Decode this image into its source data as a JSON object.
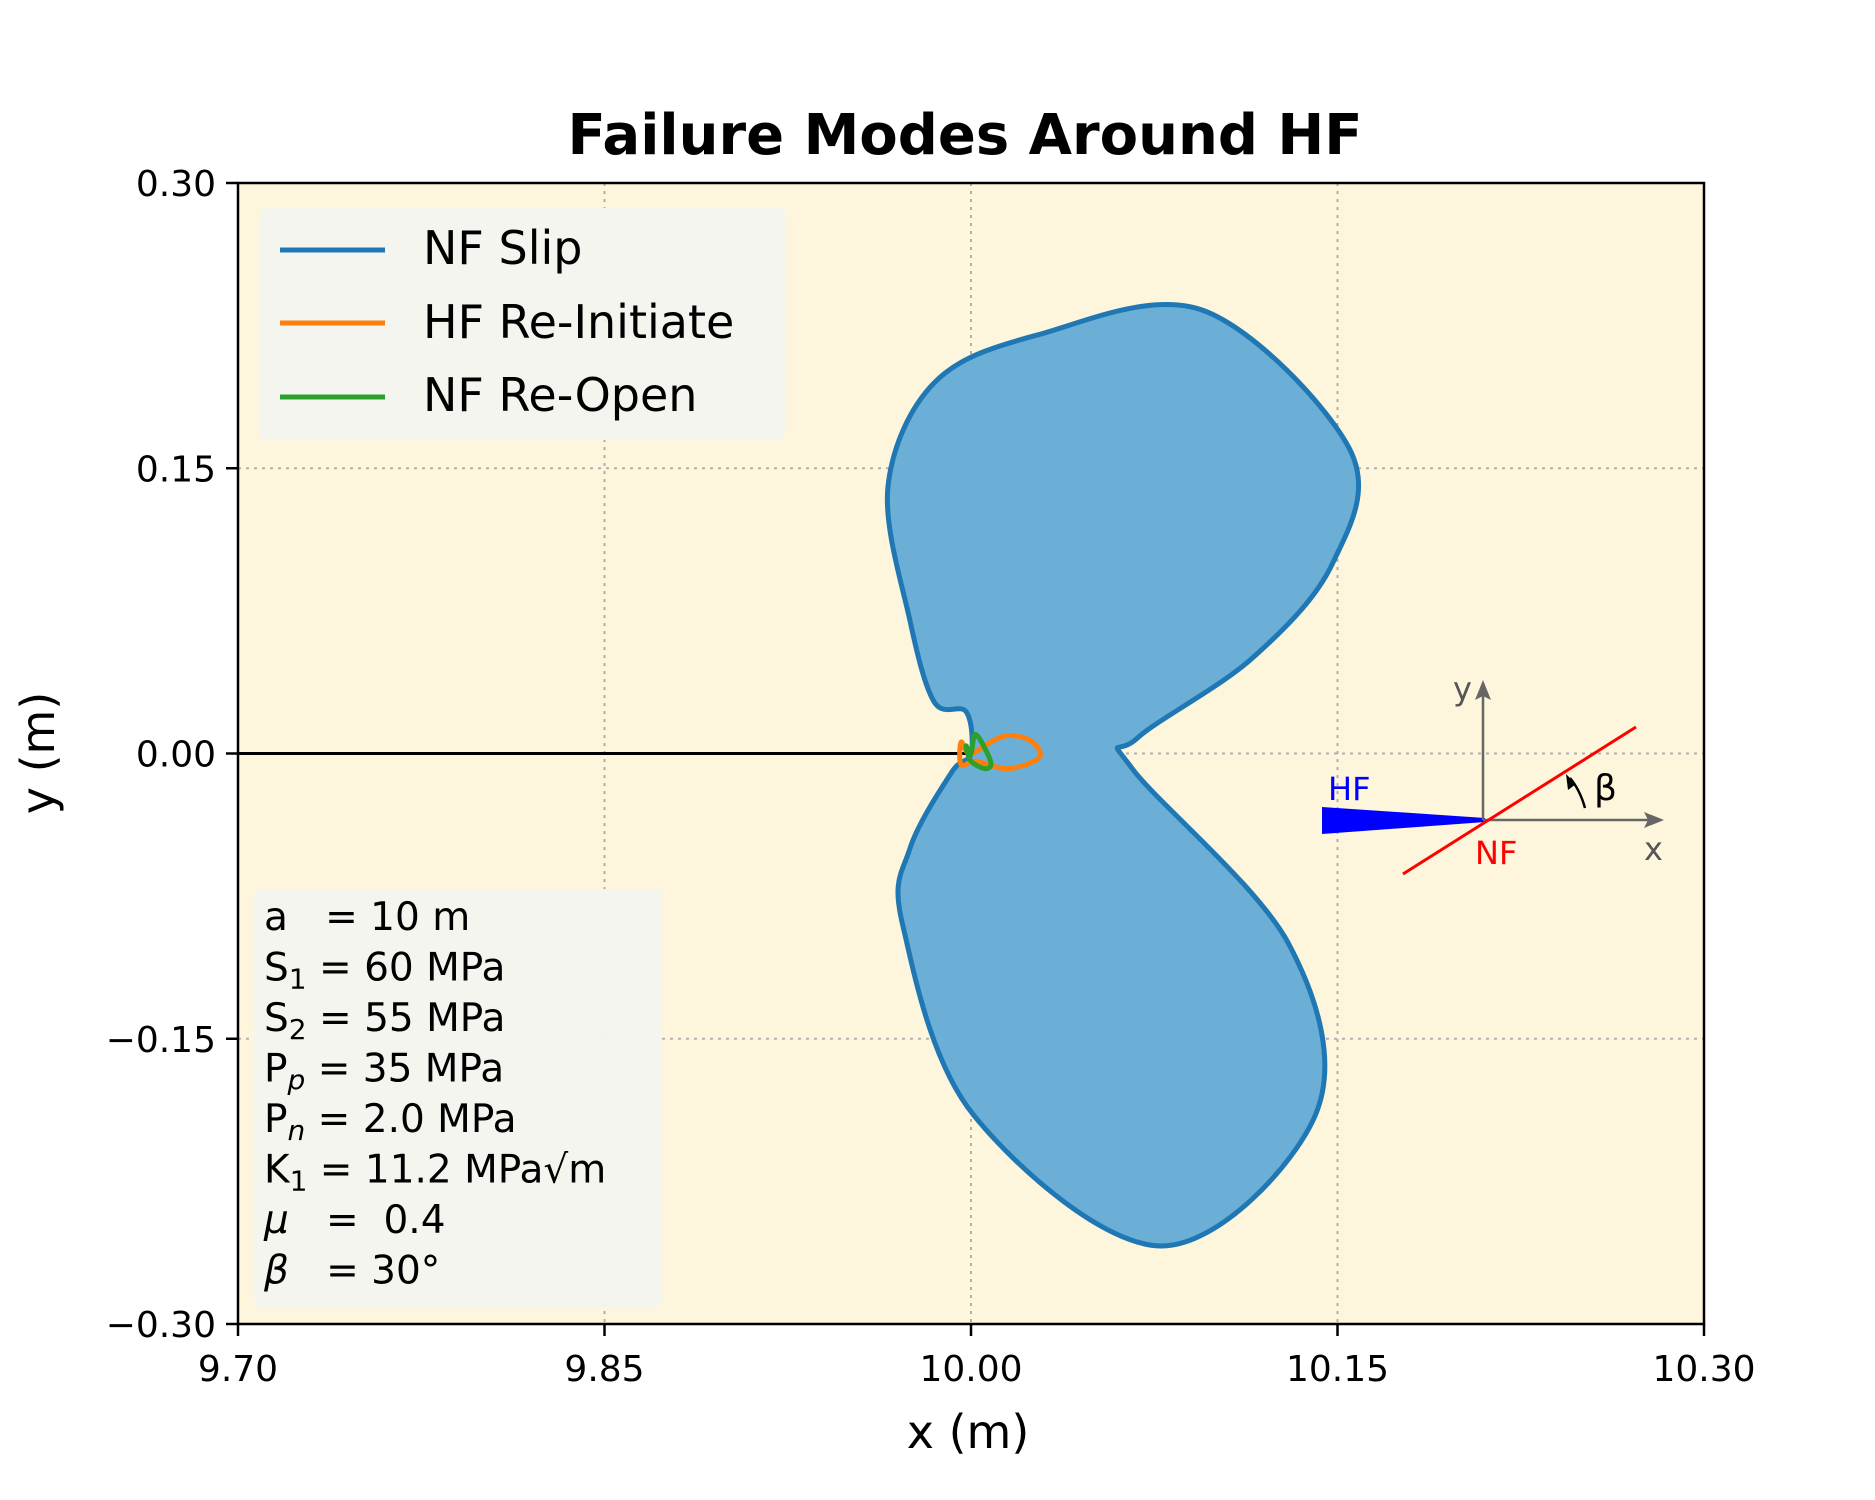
{
  "chart_data": {
    "type": "line",
    "title": "Failure Modes Around HF",
    "xlabel": "x (m)",
    "ylabel": "y (m)",
    "xlim": [
      9.7,
      10.3
    ],
    "ylim": [
      -0.3,
      0.3
    ],
    "xticks": [
      "9.70",
      "9.85",
      "10.00",
      "10.15",
      "10.30"
    ],
    "yticks": [
      "0.30",
      "0.15",
      "0.00",
      "−0.15",
      "−0.30"
    ],
    "xtick_values": [
      9.7,
      9.85,
      10.0,
      10.15,
      10.3
    ],
    "ytick_values": [
      0.3,
      0.15,
      0.0,
      -0.15,
      -0.3
    ],
    "grid": true,
    "background": "#fdf6dc",
    "legend_position": "top-left",
    "series": [
      {
        "name": "NF Slip",
        "color": "#1f77b4",
        "fill": "#6baed6",
        "x": [
          10.0,
          9.998,
          9.985,
          9.975,
          9.966,
          9.985,
          10.027,
          10.095,
          10.155,
          10.148,
          10.115,
          10.068,
          10.066,
          10.13,
          10.141,
          10.078,
          10.001,
          9.972,
          9.975,
          9.992,
          10.0
        ],
        "y": [
          0.0,
          0.022,
          0.027,
          0.07,
          0.14,
          0.195,
          0.22,
          0.233,
          0.16,
          0.1,
          0.05,
          0.008,
          -0.008,
          -0.1,
          -0.19,
          -0.259,
          -0.19,
          -0.09,
          -0.05,
          -0.01,
          0.0
        ]
      },
      {
        "name": "HF Re-Initiate",
        "color": "#ff7f0e",
        "x": [
          10.0,
          10.013,
          10.024,
          10.028,
          10.015,
          10.002,
          9.996,
          9.996,
          10.0
        ],
        "y": [
          0.0,
          0.009,
          0.007,
          -0.002,
          -0.008,
          -0.004,
          -0.006,
          0.006,
          0.0
        ]
      },
      {
        "name": "NF Re-Open",
        "color": "#2ca02c",
        "x": [
          10.0,
          10.002,
          10.008,
          10.006,
          10.0,
          9.998,
          10.0
        ],
        "y": [
          0.0,
          0.01,
          -0.004,
          -0.008,
          -0.004,
          0.004,
          0.0
        ]
      }
    ],
    "hf_line": {
      "from_x": 9.7,
      "to_x": 10.0,
      "y": 0.0,
      "color": "#000000"
    },
    "params": [
      {
        "label": "a",
        "sub": "",
        "eq": "   = 10 m",
        "italic": false
      },
      {
        "label": "S",
        "sub": "1",
        "eq": " = 60 MPa",
        "italic": false
      },
      {
        "label": "S",
        "sub": "2",
        "eq": " = 55 MPa",
        "italic": false
      },
      {
        "label": "P",
        "sub": "p",
        "eq": " = 35 MPa",
        "italic": false
      },
      {
        "label": "P",
        "sub": "n",
        "eq": " = 2.0 MPa",
        "italic": false
      },
      {
        "label": "K",
        "sub": "1",
        "eq": " = 11.2 MPa√m",
        "italic": false
      },
      {
        "label": "μ",
        "sub": "",
        "eq": "   =  0.4",
        "italic": true
      },
      {
        "label": "β",
        "sub": "",
        "eq": "   = 30°",
        "italic": true
      }
    ],
    "inset": {
      "hf_label": "HF",
      "nf_label": "NF",
      "x_label": "x",
      "y_label": "y",
      "angle_label": "β",
      "hf_color": "#0000ff",
      "nf_color": "#ff0000",
      "axis_color": "#666666"
    }
  }
}
